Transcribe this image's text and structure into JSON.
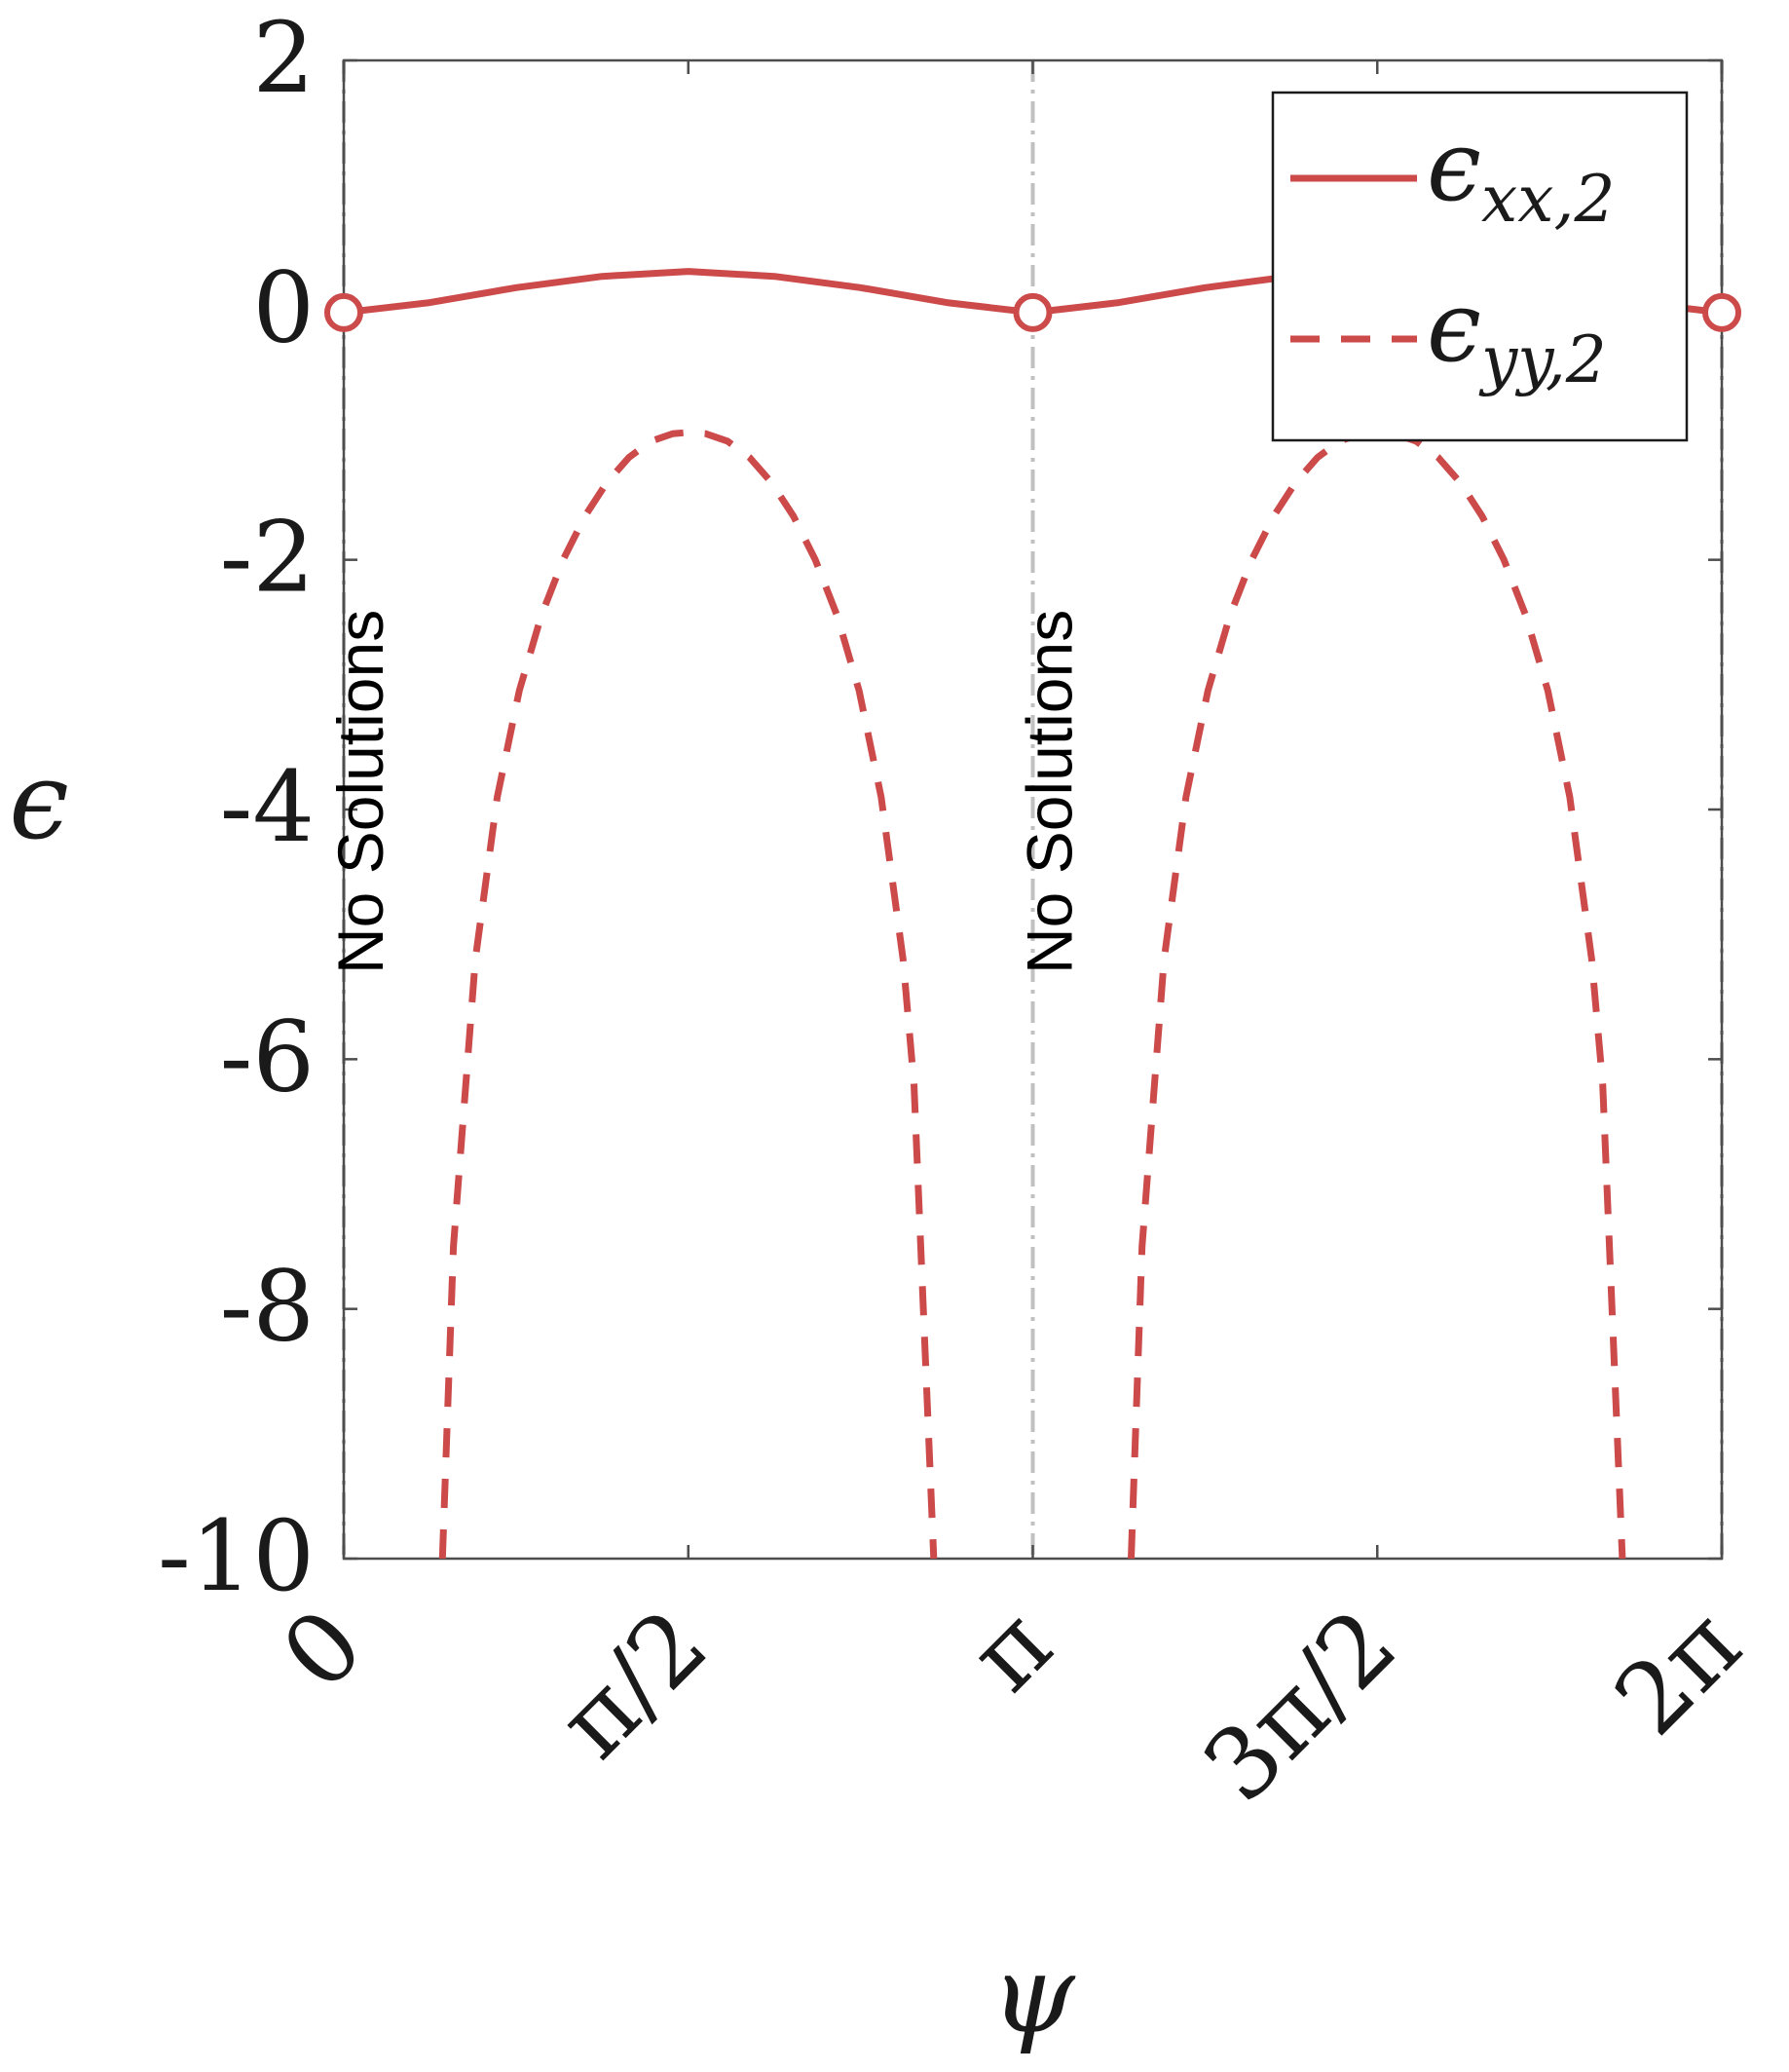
{
  "chart_data": {
    "type": "line",
    "xlabel": "ψ",
    "ylabel": "ϵ",
    "xlim": [
      0,
      6.283185307
    ],
    "ylim": [
      -10,
      2
    ],
    "x_ticks": [
      0,
      1.570796327,
      3.141592654,
      4.71238898,
      6.283185307
    ],
    "x_tick_labels": [
      "0",
      "π/2",
      "π",
      "3π/2",
      "2π"
    ],
    "y_ticks": [
      2,
      0,
      -2,
      -4,
      -6,
      -8,
      -10
    ],
    "y_tick_labels": [
      "2",
      "0",
      "-2",
      "-4",
      "-6",
      "-8",
      "-10"
    ],
    "grid": false,
    "legend_position": "top-right",
    "colors": {
      "series": "#cc4a4a",
      "axis": "#4d4d4d",
      "guide": "#c0c0c0"
    },
    "series": [
      {
        "name": "ϵ_{xx,2}",
        "legend_main": "ϵ",
        "legend_sub": "xx,2",
        "style": "solid",
        "x": [
          0,
          0.3927,
          0.7854,
          1.1781,
          1.5708,
          1.9635,
          2.3562,
          2.7489,
          3.1416,
          3.5343,
          3.927,
          4.3197,
          4.7124,
          5.1051,
          5.4978,
          5.8905,
          6.2832
        ],
        "y": [
          -0.02,
          0.06,
          0.18,
          0.27,
          0.31,
          0.27,
          0.18,
          0.06,
          -0.02,
          0.06,
          0.18,
          0.27,
          0.31,
          0.27,
          0.18,
          0.06,
          -0.02
        ]
      },
      {
        "name": "ϵ_{yy,2}",
        "legend_main": "ϵ",
        "legend_sub": "yy,2",
        "style": "dashed",
        "segments": [
          {
            "x": [
              0.45,
              0.5,
              0.6,
              0.7,
              0.8,
              0.9,
              1.0,
              1.1,
              1.2,
              1.3,
              1.4,
              1.5,
              1.5708,
              1.65,
              1.75,
              1.85,
              1.95,
              2.05,
              2.15,
              2.25,
              2.35,
              2.45,
              2.55,
              2.6,
              2.69
            ],
            "y": [
              -10.0,
              -7.5,
              -5.2,
              -3.9,
              -3.05,
              -2.45,
              -2.0,
              -1.65,
              -1.38,
              -1.18,
              -1.05,
              -0.99,
              -0.98,
              -0.99,
              -1.05,
              -1.18,
              -1.38,
              -1.65,
              -2.0,
              -2.45,
              -3.05,
              -3.9,
              -5.2,
              -6.2,
              -10.0
            ]
          },
          {
            "x": [
              3.59,
              3.64,
              3.74,
              3.84,
              3.94,
              4.04,
              4.14,
              4.24,
              4.34,
              4.44,
              4.54,
              4.64,
              4.7124,
              4.79,
              4.89,
              4.99,
              5.09,
              5.19,
              5.29,
              5.39,
              5.49,
              5.59,
              5.69,
              5.74,
              5.83
            ],
            "y": [
              -10.0,
              -7.5,
              -5.2,
              -3.9,
              -3.05,
              -2.45,
              -2.0,
              -1.65,
              -1.38,
              -1.18,
              -1.05,
              -0.99,
              -0.98,
              -0.99,
              -1.05,
              -1.18,
              -1.38,
              -1.65,
              -2.0,
              -2.45,
              -3.05,
              -3.9,
              -5.2,
              -6.2,
              -10.0
            ]
          }
        ]
      }
    ],
    "markers": {
      "x": [
        0,
        3.141592654,
        6.283185307
      ],
      "y": [
        -0.02,
        -0.02,
        -0.02
      ],
      "style": "open-circle"
    },
    "vertical_guides": {
      "x": [
        0,
        3.141592654,
        6.283185307
      ],
      "style": "dash-dot"
    },
    "annotations": [
      {
        "text": "No Solutions",
        "x": 0,
        "rotation": -90
      },
      {
        "text": "No Solutions",
        "x": 3.141592654,
        "rotation": -90
      }
    ]
  }
}
